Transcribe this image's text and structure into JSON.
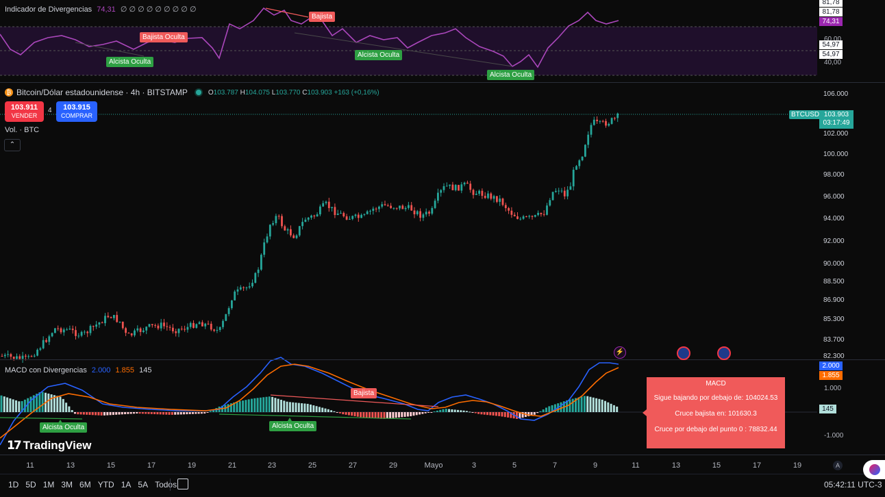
{
  "rsi": {
    "title": "Indicador de Divergencias",
    "value": "74,31",
    "dots": "∅ ∅ ∅ ∅ ∅ ∅ ∅ ∅ ∅",
    "scale_labels": [
      "81,78",
      "60,00",
      "40,00"
    ],
    "price_tags": [
      "81,78",
      "74,31",
      "54,97",
      "54,97"
    ],
    "annotations": [
      "Bajista",
      "Bajista Oculta",
      "Alcista Oculta",
      "Alcista Oculta",
      "Alcista Oculta"
    ]
  },
  "symbol": {
    "name": "Bitcoin/Dólar estadounidense · 4h · BITSTAMP",
    "o_label": "O",
    "o_value": "103.787",
    "h_label": "H",
    "h_value": "104.075",
    "l_label": "L",
    "l_value": "103.770",
    "c_label": "C",
    "c_value": "103.903",
    "change": "+163 (+0,16%)"
  },
  "trade": {
    "sell_price": "103.911",
    "sell_label": "VENDER",
    "spread": "4",
    "buy_price": "103.915",
    "buy_label": "COMPRAR"
  },
  "volume_label": "Vol. · BTC",
  "price_axis": [
    "106.000",
    "102.000",
    "100.000",
    "98.000",
    "96.000",
    "94.000",
    "92.000",
    "90.000",
    "88.500",
    "86.900",
    "85.300",
    "83.700",
    "82.300"
  ],
  "current_price": {
    "ticker": "BTCUSD",
    "price": "103.903",
    "countdown": "03:17:49"
  },
  "macd": {
    "title": "MACD con Divergencias",
    "v1": "2.000",
    "v2": "1.855",
    "v3": "145",
    "scale_labels": [
      "1.000",
      "-1.000"
    ],
    "tags": [
      "2.000",
      "1.855",
      "145"
    ],
    "annotations": [
      "Bajista",
      "Alcista Oculta",
      "Alcista Oculta"
    ],
    "popup": {
      "title": "MACD",
      "line1": "Sigue bajando por debajo de: 104024.53",
      "line2": "Cruce bajista en: 101630.3",
      "line3": "Cruce por debajo del punto 0 : 78832.44"
    }
  },
  "time_axis": [
    "11",
    "13",
    "15",
    "17",
    "19",
    "21",
    "23",
    "25",
    "27",
    "29",
    "Mayo",
    "3",
    "5",
    "7",
    "9",
    "11",
    "13",
    "15",
    "17",
    "19"
  ],
  "brand": "TradingView",
  "timeframes": [
    "1D",
    "5D",
    "1M",
    "3M",
    "6M",
    "YTD",
    "1A",
    "5A",
    "Todos"
  ],
  "clock": "05:42:11 UTC-3",
  "axis_mode": "A",
  "colors": {
    "up": "#26a69a",
    "down": "#ef5350",
    "rsi": "#ab47bc",
    "macd": "#2962ff",
    "signal": "#ff6d00"
  }
}
